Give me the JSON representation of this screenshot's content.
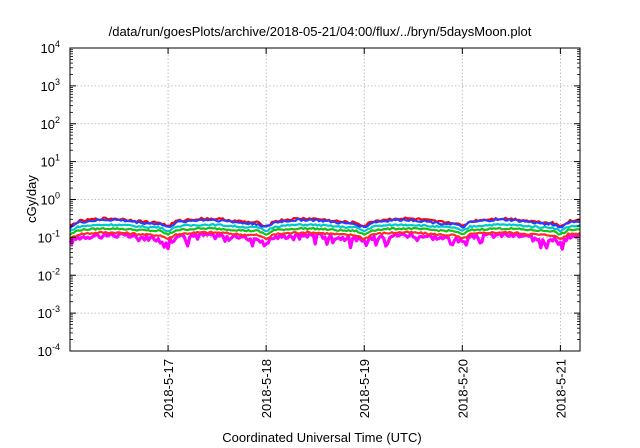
{
  "chart_data": {
    "type": "line",
    "title": "/data/run/goesPlots/archive/2018-05-21/04:00/flux/../bryn/5daysMoon.plot",
    "xlabel": "Coordinated Universal Time (UTC)",
    "ylabel": "cGy/day",
    "yscale": "log",
    "ylim": [
      0.0001,
      10000
    ],
    "y_ticks": [
      {
        "value": 0.0001,
        "base": "10",
        "exp": "-4"
      },
      {
        "value": 0.001,
        "base": "10",
        "exp": "-3"
      },
      {
        "value": 0.01,
        "base": "10",
        "exp": "-2"
      },
      {
        "value": 0.1,
        "base": "10",
        "exp": "-1"
      },
      {
        "value": 1,
        "base": "10",
        "exp": "0"
      },
      {
        "value": 10,
        "base": "10",
        "exp": "1"
      },
      {
        "value": 100,
        "base": "10",
        "exp": "2"
      },
      {
        "value": 1000,
        "base": "10",
        "exp": "3"
      },
      {
        "value": 10000,
        "base": "10",
        "exp": "4"
      }
    ],
    "xlim_days": [
      -1.0,
      4.2
    ],
    "x_ticks": [
      {
        "day": 0,
        "label": "2018-5-17"
      },
      {
        "day": 1,
        "label": "2018-5-18"
      },
      {
        "day": 2,
        "label": "2018-5-19"
      },
      {
        "day": 3,
        "label": "2018-5-20"
      },
      {
        "day": 4,
        "label": "2018-5-21"
      }
    ],
    "grid": true,
    "legend": "none",
    "series": [
      {
        "color": "#ff00ff",
        "base": 0.105,
        "amp": 0.11,
        "noise": 0.3,
        "dips": true
      },
      {
        "color": "#ff2a2a",
        "base": 0.125,
        "amp": 0.08,
        "noise": 0.12,
        "dips": false
      },
      {
        "color": "#18c018",
        "base": 0.16,
        "amp": 0.07,
        "noise": 0.1,
        "dips": false
      },
      {
        "color": "#00c8c8",
        "base": 0.2,
        "amp": 0.08,
        "noise": 0.1,
        "dips": false
      },
      {
        "color": "#ff0000",
        "base": 0.28,
        "amp": 0.12,
        "noise": 0.14,
        "dips": false
      },
      {
        "color": "#2a3cff",
        "base": 0.26,
        "amp": 0.12,
        "noise": 0.14,
        "dips": false
      }
    ]
  }
}
